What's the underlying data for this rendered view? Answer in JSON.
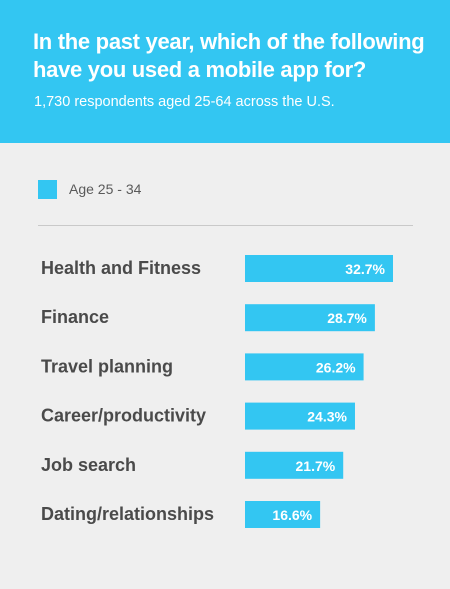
{
  "header": {
    "title": "In the past year, which of the following have you used a mobile app for?",
    "subtitle": "1,730 respondents aged 25-64 across the U.S."
  },
  "colors": {
    "header_bg": "#33c6f2",
    "bar": "#33c6f2",
    "background": "#efefef"
  },
  "chart_data": {
    "type": "bar",
    "orientation": "horizontal",
    "categories": [
      "Health and Fitness",
      "Finance",
      "Travel planning",
      "Career/productivity",
      "Job search",
      "Dating/relationships"
    ],
    "series": [
      {
        "name": "Age 25 - 34",
        "values": [
          32.7,
          28.7,
          26.2,
          24.3,
          21.7,
          16.6
        ]
      }
    ],
    "data_labels": [
      "32.7%",
      "28.7%",
      "26.2%",
      "24.3%",
      "21.7%",
      "16.6%"
    ],
    "legend_position": "top-left",
    "grid": false
  }
}
